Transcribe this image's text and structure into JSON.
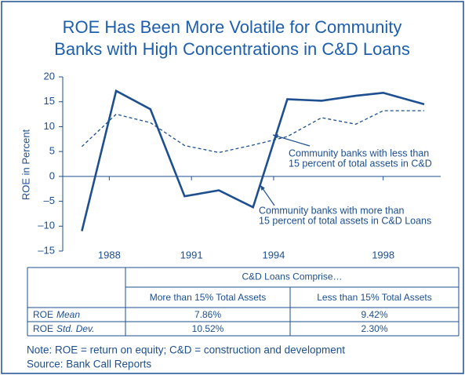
{
  "chart_data": {
    "type": "line",
    "title": [
      "ROE Has Been More Volatile for Community",
      "Banks with High Concentrations in C&D Loans"
    ],
    "ylabel": "ROE in Percent",
    "x": [
      1987,
      1988.25,
      1989.5,
      1990.75,
      1992,
      1993.25,
      1994.5,
      1995.75,
      1997,
      1998,
      1999.5
    ],
    "series": [
      {
        "name": "Community banks with more than 15 percent of total assets in C&D Loans",
        "color": "#1d4f91",
        "dash": false,
        "values": [
          -11,
          17.2,
          13.5,
          -4,
          -2.8,
          -6.2,
          15.5,
          15.2,
          16.2,
          16.8,
          14.5
        ]
      },
      {
        "name": "Community banks with less than 15 percent of total assets in C&D",
        "color": "#1d4f91",
        "dash": true,
        "values": [
          6,
          12.5,
          10.8,
          6.2,
          4.8,
          6.3,
          8,
          11.8,
          10.5,
          13.2,
          13.2
        ]
      }
    ],
    "annotations": [
      {
        "lines": [
          "Community banks with less than",
          "15 percent of total assets in C&D"
        ]
      },
      {
        "lines": [
          "Community banks with more than",
          "15 percent of total assets in C&D Loans"
        ]
      }
    ],
    "xlim": [
      1986.3,
      2000.1
    ],
    "xticks": [
      1988,
      1991,
      1994,
      1998
    ],
    "ylim": [
      -15,
      20
    ],
    "yticks": [
      {
        "value": -15,
        "label": "–15"
      },
      {
        "value": -10,
        "label": "–10"
      },
      {
        "value": -5,
        "label": "–5"
      },
      0,
      5,
      10,
      15,
      20
    ]
  },
  "table": {
    "group_header": "C&D Loans Comprise…",
    "columns": [
      "More than 15% Total Assets",
      "Less than 15% Total Assets"
    ],
    "rows": [
      {
        "label": "ROE",
        "label_em": "Mean",
        "cells": [
          "7.86%",
          "9.42%"
        ]
      },
      {
        "label": "ROE",
        "label_em": "Std. Dev.",
        "cells": [
          "10.52%",
          "2.30%"
        ]
      }
    ]
  },
  "notes": [
    "Note: ROE = return on equity; C&D = construction and development",
    "Source: Bank Call Reports"
  ]
}
